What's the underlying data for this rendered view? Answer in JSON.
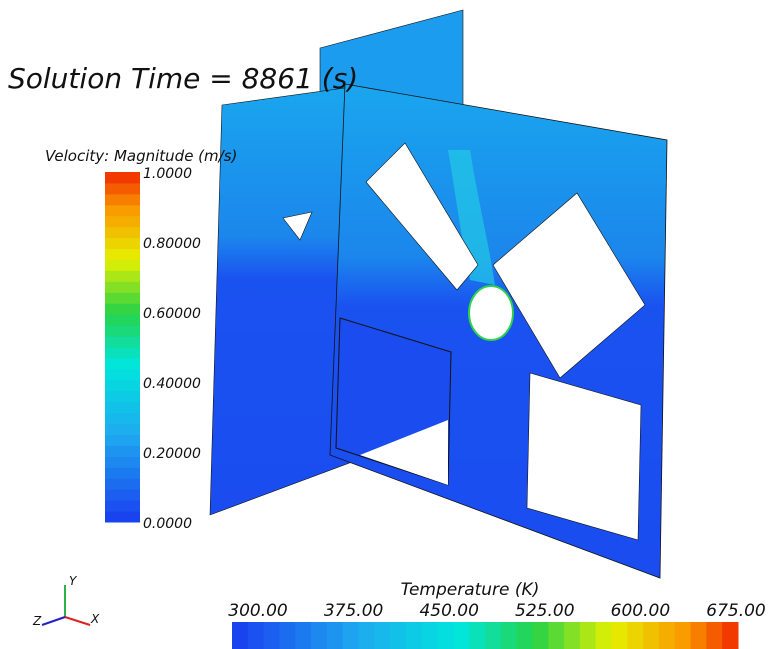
{
  "title": "Solution Time = 8861 (s)",
  "velocity_legend": {
    "title": "Velocity: Magnitude (m/s)",
    "labels": [
      "1.0000",
      "0.80000",
      "0.60000",
      "0.40000",
      "0.20000",
      "0.0000"
    ]
  },
  "temperature_legend": {
    "title": "Temperature (K)",
    "labels": [
      "300.00",
      "375.00",
      "450.00",
      "525.00",
      "600.00",
      "675.00"
    ]
  },
  "axes_triad": {
    "y": "Y",
    "z": "Z",
    "x": "X"
  }
}
